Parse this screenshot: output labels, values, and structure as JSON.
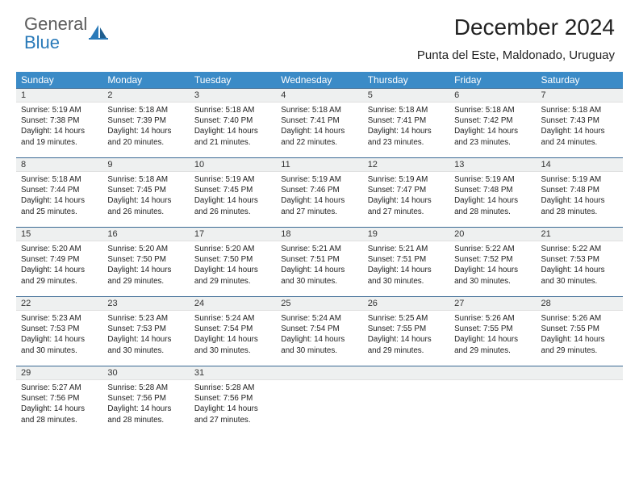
{
  "logo": {
    "line1": "General",
    "line2": "Blue"
  },
  "title": "December 2024",
  "location": "Punta del Este, Maldonado, Uruguay",
  "colors": {
    "header_bg": "#3b8bc7",
    "header_text": "#ffffff",
    "row_divider": "#3b6a94",
    "daynum_bg": "#eef0f0",
    "logo_gray": "#5a5a5a",
    "logo_blue": "#2a7ab9"
  },
  "columns": [
    "Sunday",
    "Monday",
    "Tuesday",
    "Wednesday",
    "Thursday",
    "Friday",
    "Saturday"
  ],
  "weeks": [
    [
      {
        "n": "1",
        "sr": "5:19 AM",
        "ss": "7:38 PM",
        "dl": "14 hours and 19 minutes."
      },
      {
        "n": "2",
        "sr": "5:18 AM",
        "ss": "7:39 PM",
        "dl": "14 hours and 20 minutes."
      },
      {
        "n": "3",
        "sr": "5:18 AM",
        "ss": "7:40 PM",
        "dl": "14 hours and 21 minutes."
      },
      {
        "n": "4",
        "sr": "5:18 AM",
        "ss": "7:41 PM",
        "dl": "14 hours and 22 minutes."
      },
      {
        "n": "5",
        "sr": "5:18 AM",
        "ss": "7:41 PM",
        "dl": "14 hours and 23 minutes."
      },
      {
        "n": "6",
        "sr": "5:18 AM",
        "ss": "7:42 PM",
        "dl": "14 hours and 23 minutes."
      },
      {
        "n": "7",
        "sr": "5:18 AM",
        "ss": "7:43 PM",
        "dl": "14 hours and 24 minutes."
      }
    ],
    [
      {
        "n": "8",
        "sr": "5:18 AM",
        "ss": "7:44 PM",
        "dl": "14 hours and 25 minutes."
      },
      {
        "n": "9",
        "sr": "5:18 AM",
        "ss": "7:45 PM",
        "dl": "14 hours and 26 minutes."
      },
      {
        "n": "10",
        "sr": "5:19 AM",
        "ss": "7:45 PM",
        "dl": "14 hours and 26 minutes."
      },
      {
        "n": "11",
        "sr": "5:19 AM",
        "ss": "7:46 PM",
        "dl": "14 hours and 27 minutes."
      },
      {
        "n": "12",
        "sr": "5:19 AM",
        "ss": "7:47 PM",
        "dl": "14 hours and 27 minutes."
      },
      {
        "n": "13",
        "sr": "5:19 AM",
        "ss": "7:48 PM",
        "dl": "14 hours and 28 minutes."
      },
      {
        "n": "14",
        "sr": "5:19 AM",
        "ss": "7:48 PM",
        "dl": "14 hours and 28 minutes."
      }
    ],
    [
      {
        "n": "15",
        "sr": "5:20 AM",
        "ss": "7:49 PM",
        "dl": "14 hours and 29 minutes."
      },
      {
        "n": "16",
        "sr": "5:20 AM",
        "ss": "7:50 PM",
        "dl": "14 hours and 29 minutes."
      },
      {
        "n": "17",
        "sr": "5:20 AM",
        "ss": "7:50 PM",
        "dl": "14 hours and 29 minutes."
      },
      {
        "n": "18",
        "sr": "5:21 AM",
        "ss": "7:51 PM",
        "dl": "14 hours and 30 minutes."
      },
      {
        "n": "19",
        "sr": "5:21 AM",
        "ss": "7:51 PM",
        "dl": "14 hours and 30 minutes."
      },
      {
        "n": "20",
        "sr": "5:22 AM",
        "ss": "7:52 PM",
        "dl": "14 hours and 30 minutes."
      },
      {
        "n": "21",
        "sr": "5:22 AM",
        "ss": "7:53 PM",
        "dl": "14 hours and 30 minutes."
      }
    ],
    [
      {
        "n": "22",
        "sr": "5:23 AM",
        "ss": "7:53 PM",
        "dl": "14 hours and 30 minutes."
      },
      {
        "n": "23",
        "sr": "5:23 AM",
        "ss": "7:53 PM",
        "dl": "14 hours and 30 minutes."
      },
      {
        "n": "24",
        "sr": "5:24 AM",
        "ss": "7:54 PM",
        "dl": "14 hours and 30 minutes."
      },
      {
        "n": "25",
        "sr": "5:24 AM",
        "ss": "7:54 PM",
        "dl": "14 hours and 30 minutes."
      },
      {
        "n": "26",
        "sr": "5:25 AM",
        "ss": "7:55 PM",
        "dl": "14 hours and 29 minutes."
      },
      {
        "n": "27",
        "sr": "5:26 AM",
        "ss": "7:55 PM",
        "dl": "14 hours and 29 minutes."
      },
      {
        "n": "28",
        "sr": "5:26 AM",
        "ss": "7:55 PM",
        "dl": "14 hours and 29 minutes."
      }
    ],
    [
      {
        "n": "29",
        "sr": "5:27 AM",
        "ss": "7:56 PM",
        "dl": "14 hours and 28 minutes."
      },
      {
        "n": "30",
        "sr": "5:28 AM",
        "ss": "7:56 PM",
        "dl": "14 hours and 28 minutes."
      },
      {
        "n": "31",
        "sr": "5:28 AM",
        "ss": "7:56 PM",
        "dl": "14 hours and 27 minutes."
      },
      {
        "empty": true
      },
      {
        "empty": true
      },
      {
        "empty": true
      },
      {
        "empty": true
      }
    ]
  ],
  "labels": {
    "sunrise": "Sunrise:",
    "sunset": "Sunset:",
    "daylight": "Daylight:"
  }
}
